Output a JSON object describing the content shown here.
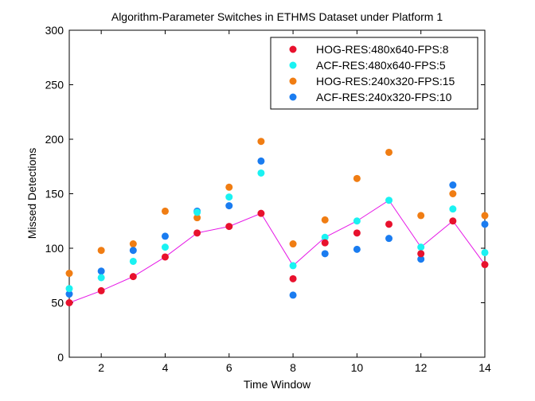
{
  "chart_data": {
    "type": "scatter",
    "title": "Algorithm-Parameter Switches in ETHMS Dataset under Platform 1",
    "xlabel": "Time Window",
    "ylabel": "Missed Detections",
    "xlim": [
      1,
      14
    ],
    "ylim": [
      0,
      300
    ],
    "xticks": [
      2,
      4,
      6,
      8,
      10,
      12,
      14
    ],
    "yticks": [
      0,
      50,
      100,
      150,
      200,
      250,
      300
    ],
    "x": [
      1,
      2,
      3,
      4,
      5,
      6,
      7,
      8,
      9,
      10,
      11,
      12,
      13,
      14
    ],
    "legend_position": "top-right",
    "series": [
      {
        "name": "HOG-RES:480x640-FPS:8",
        "color": "#e8112d",
        "values": [
          50,
          61,
          74,
          92,
          114,
          120,
          132,
          72,
          105,
          114,
          122,
          95,
          125,
          85
        ]
      },
      {
        "name": "ACF-RES:480x640-FPS:5",
        "color": "#1af2f2",
        "values": [
          63,
          73,
          88,
          101,
          133,
          147,
          169,
          84,
          110,
          125,
          144,
          101,
          136,
          96
        ]
      },
      {
        "name": "HOG-RES:240x320-FPS:15",
        "color": "#f07d13",
        "values": [
          77,
          98,
          104,
          134,
          128,
          156,
          198,
          104,
          126,
          164,
          188,
          130,
          150,
          130
        ]
      },
      {
        "name": "ACF-RES:240x320-FPS:10",
        "color": "#1a7cf0",
        "values": [
          58,
          79,
          98,
          111,
          134,
          139,
          180,
          57,
          95,
          99,
          109,
          90,
          158,
          122
        ]
      }
    ],
    "switch_line": {
      "color": "#e619e6",
      "values": [
        50,
        61,
        74,
        92,
        114,
        120,
        132,
        84,
        110,
        125,
        144,
        101,
        125,
        85
      ]
    }
  }
}
